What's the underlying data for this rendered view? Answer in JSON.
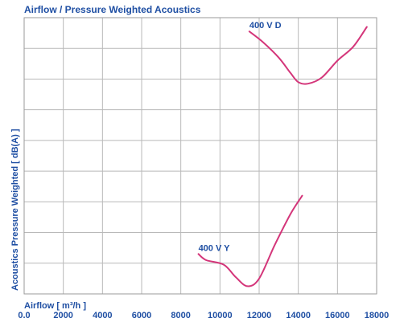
{
  "chart_data": {
    "type": "line",
    "title": "Airflow / Pressure Weighted Acoustics",
    "xlabel": "Airflow [ m³/h ]",
    "ylabel": "Acoustics Pressure Weighted [ dB(A) ]",
    "xlim": [
      0,
      18000
    ],
    "x_ticks": [
      "0.0",
      "2000",
      "4000",
      "6000",
      "8000",
      "10000",
      "12000",
      "14000",
      "16000",
      "18000"
    ],
    "y_divisions": 9,
    "grid": true,
    "series": [
      {
        "name": "400 V D",
        "x": [
          11500,
          12200,
          13000,
          13600,
          14000,
          14500,
          15200,
          16000,
          16800,
          17500
        ],
        "y": [
          8.55,
          8.2,
          7.7,
          7.2,
          6.9,
          6.85,
          7.05,
          7.6,
          8.05,
          8.7
        ]
      },
      {
        "name": "400 V Y",
        "x": [
          8900,
          9300,
          10200,
          10800,
          11400,
          12000,
          12800,
          13600,
          14200
        ],
        "y": [
          1.3,
          1.1,
          0.95,
          0.55,
          0.25,
          0.5,
          1.6,
          2.6,
          3.2
        ]
      }
    ]
  },
  "colors": {
    "text": "#1f4fa3",
    "curve": "#d4367a",
    "grid": "#b9b9b9"
  }
}
